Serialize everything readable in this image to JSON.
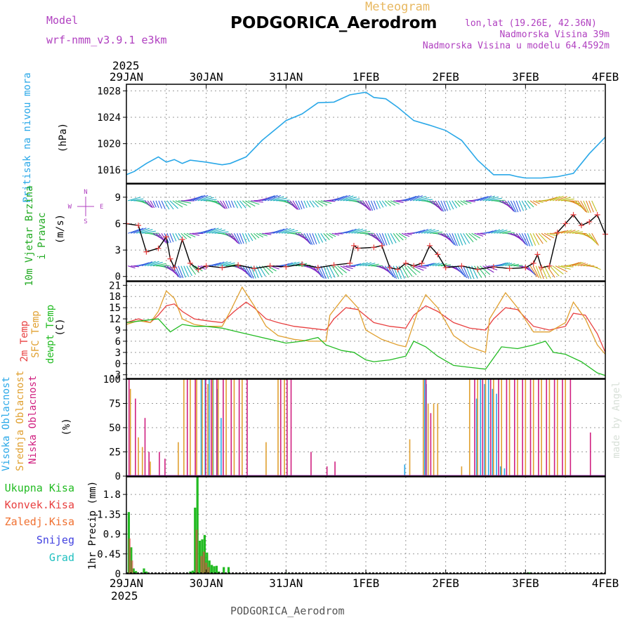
{
  "header": {
    "model_label": "Model",
    "model_name": "wrf-nmm_v3.9.1  e3km",
    "chart_kind": "Meteogram",
    "station": "PODGORICA_Aerodrom",
    "lonlat": "lon,lat (19.26E, 42.36N)",
    "altitude": "Nadmorska Visina 39m",
    "model_altitude": "Nadmorska Visina u modelu 64.4592m"
  },
  "footer": {
    "station": "PODGORICA_Aerodrom",
    "credit": "made by Angel"
  },
  "colors": {
    "pressure": "#2aa8e8",
    "wind_label": "#22aa22",
    "wind_axis": "#b040c0",
    "temp_2m": "#e84040",
    "temp_sfc": "#e0a030",
    "dewpt": "#22bb22",
    "cloud_high": "#2aa8e8",
    "cloud_mid": "#e0a030",
    "cloud_low": "#d02080",
    "precip_total": "#22bb22",
    "precip_conv": "#e84040",
    "precip_frozen": "#f07030",
    "precip_snow": "#4040e0",
    "precip_graupel": "#20c0c0",
    "header_purple": "#b040c0",
    "header_orange": "#e8b860"
  },
  "chart_data": [
    {
      "type": "line",
      "panel": "pressure",
      "title": "Pritisak na nivou mora",
      "ylabel": "(hPa)",
      "xlabel_top_year": "2025",
      "x_ticks": [
        "29JAN",
        "30JAN",
        "31JAN",
        "1FEB",
        "2FEB",
        "3FEB",
        "4FEB"
      ],
      "x_range_days": [
        0,
        6
      ],
      "ylim": [
        1014,
        1029
      ],
      "y_ticks": [
        "1016",
        "1020",
        "1024",
        "1028"
      ],
      "y_tick_values": [
        1016,
        1020,
        1024,
        1028
      ],
      "series": [
        {
          "name": "Pritisak na nivou mora",
          "x": [
            0,
            0.1,
            0.25,
            0.4,
            0.5,
            0.6,
            0.7,
            0.8,
            1.0,
            1.2,
            1.3,
            1.5,
            1.7,
            1.9,
            2.0,
            2.2,
            2.4,
            2.6,
            2.8,
            3.0,
            3.1,
            3.25,
            3.4,
            3.6,
            3.8,
            4.0,
            4.2,
            4.4,
            4.6,
            4.8,
            4.9,
            5.0,
            5.2,
            5.4,
            5.6,
            5.8,
            6.0
          ],
          "values": [
            1015.3,
            1015.8,
            1017.0,
            1018.0,
            1017.2,
            1017.6,
            1017.0,
            1017.5,
            1017.2,
            1016.8,
            1017.0,
            1018.0,
            1020.5,
            1022.5,
            1023.5,
            1024.5,
            1026.2,
            1026.3,
            1027.4,
            1027.8,
            1027.0,
            1026.8,
            1025.5,
            1023.5,
            1022.8,
            1022.0,
            1020.5,
            1017.5,
            1015.3,
            1015.3,
            1015.0,
            1014.8,
            1014.8,
            1015.0,
            1015.5,
            1018.5,
            1021.0
          ]
        }
      ]
    },
    {
      "type": "line",
      "panel": "wind",
      "title": "10m Vjetar Brzina i Pravac",
      "ylabel": "(m/s)",
      "compass": [
        "N",
        "E",
        "S",
        "W"
      ],
      "ylim": [
        -0.5,
        10.5
      ],
      "y_ticks": [
        "0",
        "3",
        "6",
        "9"
      ],
      "y_tick_values": [
        0,
        3,
        6,
        9
      ],
      "series": [
        {
          "name": "10m wind speed",
          "x": [
            0,
            0.15,
            0.25,
            0.4,
            0.5,
            0.55,
            0.6,
            0.7,
            0.8,
            0.9,
            1.0,
            1.2,
            1.4,
            1.6,
            1.8,
            2.0,
            2.2,
            2.4,
            2.6,
            2.8,
            2.85,
            2.9,
            3.1,
            3.2,
            3.3,
            3.4,
            3.5,
            3.6,
            3.7,
            3.8,
            3.9,
            4.0,
            4.2,
            4.4,
            4.6,
            4.8,
            5.0,
            5.1,
            5.15,
            5.2,
            5.3,
            5.4,
            5.5,
            5.6,
            5.7,
            5.8,
            5.9,
            6.0
          ],
          "values": [
            6.0,
            5.8,
            2.8,
            3.2,
            4.5,
            2.0,
            1.0,
            4.2,
            1.5,
            0.8,
            1.2,
            1.0,
            1.3,
            0.9,
            1.2,
            1.1,
            1.4,
            1.0,
            1.3,
            1.5,
            3.5,
            3.2,
            3.3,
            3.5,
            1.0,
            0.8,
            1.5,
            1.2,
            1.5,
            3.5,
            2.5,
            1.0,
            1.2,
            0.8,
            1.1,
            0.9,
            1.0,
            1.5,
            2.5,
            1.0,
            1.2,
            5.0,
            6.0,
            7.0,
            5.8,
            6.2,
            7.0,
            4.8
          ]
        }
      ]
    },
    {
      "type": "line",
      "panel": "temperature",
      "ylabel": "(C)",
      "ylim": [
        -4,
        22
      ],
      "y_ticks": [
        "-3",
        "0",
        "3",
        "6",
        "9",
        "12",
        "15",
        "18",
        "21"
      ],
      "y_tick_values": [
        -3,
        0,
        3,
        6,
        9,
        12,
        15,
        18,
        21
      ],
      "series": [
        {
          "name": "2m Temp",
          "x": [
            0,
            0.15,
            0.3,
            0.4,
            0.5,
            0.6,
            0.7,
            0.85,
            1.0,
            1.2,
            1.35,
            1.5,
            1.6,
            1.75,
            1.9,
            2.1,
            2.3,
            2.5,
            2.6,
            2.75,
            2.9,
            3.1,
            3.3,
            3.5,
            3.6,
            3.75,
            3.9,
            4.1,
            4.3,
            4.5,
            4.6,
            4.75,
            4.9,
            5.1,
            5.3,
            5.5,
            5.6,
            5.75,
            5.9,
            6.0
          ],
          "values": [
            11,
            12,
            11,
            13,
            15.5,
            16,
            14,
            12,
            11.5,
            11,
            14,
            16.5,
            15,
            12,
            11,
            10,
            9.5,
            9,
            12,
            15,
            14.5,
            11,
            10,
            9.5,
            13,
            15.5,
            14,
            11,
            9.5,
            9,
            12,
            15,
            14.5,
            10,
            9,
            10,
            13.5,
            13,
            8,
            3
          ]
        },
        {
          "name": "SFC Temp",
          "x": [
            0,
            0.15,
            0.3,
            0.4,
            0.5,
            0.6,
            0.7,
            0.85,
            1.0,
            1.2,
            1.3,
            1.45,
            1.6,
            1.75,
            1.9,
            2.1,
            2.3,
            2.5,
            2.55,
            2.75,
            2.9,
            3.0,
            3.2,
            3.4,
            3.5,
            3.65,
            3.75,
            3.9,
            4.1,
            4.3,
            4.5,
            4.55,
            4.75,
            4.9,
            5.1,
            5.3,
            5.5,
            5.6,
            5.75,
            5.9,
            6.0
          ],
          "values": [
            10.5,
            11.5,
            11,
            14,
            19.5,
            17.5,
            12,
            10.5,
            10,
            10,
            14,
            20.5,
            15.5,
            10,
            7.5,
            6.5,
            6,
            6,
            13,
            18.5,
            15,
            9,
            6.5,
            5,
            4.5,
            14,
            18.5,
            15,
            7.5,
            4.5,
            3,
            12,
            19,
            15,
            8.5,
            8.5,
            11,
            16.5,
            12,
            5,
            2.5
          ]
        },
        {
          "name": "dewpt Temp",
          "x": [
            0,
            0.2,
            0.4,
            0.55,
            0.7,
            0.85,
            1.0,
            1.2,
            1.4,
            1.6,
            1.8,
            2.0,
            2.2,
            2.4,
            2.5,
            2.7,
            2.85,
            3.0,
            3.1,
            3.3,
            3.5,
            3.6,
            3.75,
            3.9,
            4.1,
            4.3,
            4.5,
            4.7,
            4.9,
            5.1,
            5.25,
            5.35,
            5.5,
            5.7,
            5.9,
            6.0
          ],
          "values": [
            11,
            11.5,
            12,
            8.5,
            10.5,
            10,
            10,
            9.5,
            8.5,
            7.5,
            6.5,
            5.5,
            6.0,
            7.0,
            5.0,
            3.5,
            3.0,
            1.0,
            0.5,
            1.0,
            2.0,
            6.0,
            4.5,
            2.0,
            -0.5,
            -1.0,
            -1.5,
            4.5,
            4.0,
            5.0,
            6.0,
            3.0,
            2.5,
            0.5,
            -2.5,
            -3.2
          ]
        }
      ],
      "legend": [
        "2m Temp",
        "SFC Temp",
        "dewpt Temp"
      ]
    },
    {
      "type": "bar",
      "panel": "cloud",
      "ylabel": "(%)",
      "ylim": [
        0,
        100
      ],
      "y_ticks": [
        "0",
        "25",
        "50",
        "75",
        "100"
      ],
      "y_tick_values": [
        0,
        25,
        50,
        75,
        100
      ],
      "legend": [
        "Visoka Oblacnost",
        "Srednja Oblacnost",
        "Niska Oblacnost"
      ],
      "series": [
        {
          "name": "Visoka Oblacnost",
          "x": [
            0.95,
            1.0,
            1.05,
            1.1,
            1.15,
            1.2,
            3.5,
            3.75,
            3.77,
            4.4,
            4.45,
            4.5,
            4.55,
            4.6,
            4.65,
            4.7,
            4.75
          ],
          "values": [
            100,
            100,
            100,
            100,
            90,
            60,
            12,
            100,
            95,
            80,
            100,
            95,
            100,
            90,
            85,
            10,
            8
          ]
        },
        {
          "name": "Srednja Oblacnost",
          "x": [
            0.05,
            0.15,
            0.2,
            0.3,
            0.65,
            0.72,
            0.8,
            0.88,
            0.95,
            1.02,
            1.08,
            1.15,
            1.25,
            1.35,
            1.45,
            1.75,
            1.9,
            1.98,
            3.55,
            3.72,
            3.78,
            3.85,
            3.9,
            4.2,
            4.3,
            4.4,
            4.5,
            4.6,
            4.7,
            4.8,
            4.9,
            5.0,
            5.1,
            5.2,
            5.3,
            5.4,
            5.5
          ],
          "values": [
            90,
            40,
            30,
            15,
            35,
            100,
            100,
            100,
            100,
            95,
            100,
            100,
            100,
            100,
            100,
            35,
            100,
            100,
            38,
            100,
            75,
            75,
            75,
            10,
            100,
            100,
            100,
            100,
            100,
            100,
            100,
            100,
            100,
            100,
            100,
            100,
            100
          ]
        },
        {
          "name": "Niska Oblacnost",
          "x": [
            0.02,
            0.1,
            0.22,
            0.27,
            0.4,
            0.47,
            0.75,
            0.85,
            0.98,
            1.05,
            1.12,
            1.2,
            1.3,
            1.4,
            1.5,
            1.92,
            2.0,
            2.05,
            2.3,
            2.5,
            2.6,
            3.74,
            3.8,
            4.35,
            4.45,
            4.55,
            4.65,
            4.75,
            4.85,
            4.95,
            5.05,
            5.15,
            5.25,
            5.35,
            5.45,
            5.55,
            5.8
          ],
          "values": [
            100,
            80,
            60,
            25,
            25,
            18,
            100,
            100,
            100,
            100,
            100,
            100,
            100,
            100,
            100,
            100,
            100,
            100,
            25,
            10,
            15,
            100,
            65,
            100,
            100,
            100,
            100,
            100,
            100,
            100,
            100,
            100,
            100,
            100,
            100,
            100,
            45
          ]
        }
      ]
    },
    {
      "type": "bar",
      "panel": "precip",
      "ylabel": "1hr Precip (mm)",
      "ylim": [
        0,
        2.2
      ],
      "y_ticks": [
        "0",
        "0.45",
        "0.9",
        "1.35",
        "1.8"
      ],
      "y_tick_values": [
        0,
        0.45,
        0.9,
        1.35,
        1.8
      ],
      "x_ticks": [
        "29JAN",
        "30JAN",
        "31JAN",
        "1FEB",
        "2FEB",
        "3FEB",
        "4FEB"
      ],
      "xlabel_bottom_year": "2025",
      "legend": [
        "Ukupna Kisa",
        "Konvek.Kisa",
        "Zaledj.Kisa",
        "Snijeg",
        "Grad"
      ],
      "series": [
        {
          "name": "Ukupna Kisa",
          "x": [
            0.03,
            0.06,
            0.09,
            0.12,
            0.22,
            0.25,
            0.8,
            0.83,
            0.86,
            0.89,
            0.92,
            0.95,
            0.98,
            1.01,
            1.04,
            1.07,
            1.1,
            1.13,
            1.16,
            1.22,
            1.28,
            2.0,
            5.0,
            5.05
          ],
          "values": [
            1.4,
            0.6,
            0.12,
            0.06,
            0.12,
            0.05,
            0.05,
            0.07,
            1.5,
            2.2,
            0.75,
            0.78,
            0.88,
            0.48,
            0.3,
            0.2,
            0.17,
            0.18,
            0.05,
            0.15,
            0.15,
            0.02,
            0.02,
            0.03
          ]
        },
        {
          "name": "Konvek.Kisa",
          "x": [
            0.04,
            0.07,
            0.88,
            0.94,
            0.97,
            1.0,
            1.03
          ],
          "values": [
            0.8,
            0.3,
            1.0,
            0.4,
            0.5,
            0.25,
            0.15
          ]
        }
      ]
    }
  ]
}
